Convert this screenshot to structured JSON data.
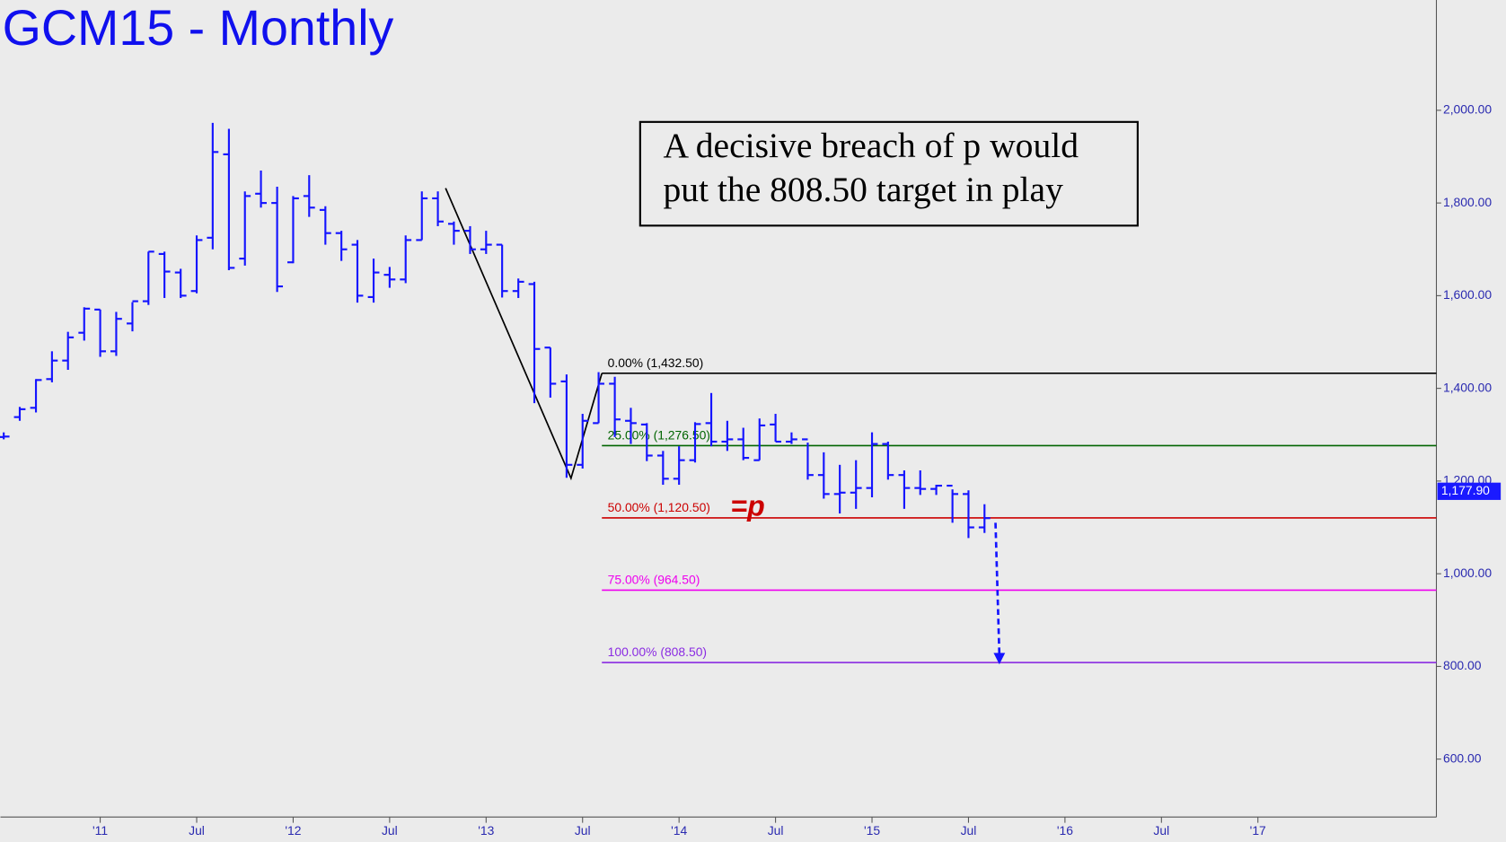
{
  "chart_data": {
    "type": "ohlc",
    "title": "GCM15 - Monthly",
    "annotation": [
      "A decisive breach of p would",
      "put the 808.50 target in play"
    ],
    "marker_text": "=p",
    "x": [
      2010.5,
      2010.583,
      2010.667,
      2010.75,
      2010.833,
      2010.917,
      2011.0,
      2011.083,
      2011.167,
      2011.25,
      2011.333,
      2011.417,
      2011.5,
      2011.583,
      2011.667,
      2011.75,
      2011.833,
      2011.917,
      2012.0,
      2012.083,
      2012.167,
      2012.25,
      2012.333,
      2012.417,
      2012.5,
      2012.583,
      2012.667,
      2012.75,
      2012.833,
      2012.917,
      2013.0,
      2013.083,
      2013.167,
      2013.25,
      2013.333,
      2013.417,
      2013.5,
      2013.583,
      2013.667,
      2013.75,
      2013.833,
      2013.917,
      2014.0,
      2014.083,
      2014.167,
      2014.25,
      2014.333,
      2014.417,
      2014.5,
      2014.583,
      2014.667,
      2014.75,
      2014.833,
      2014.917,
      2015.0,
      2015.083,
      2015.167,
      2015.25,
      2015.333,
      2015.417,
      2015.5,
      2015.583
    ],
    "series": [
      {
        "color": "#1414ff",
        "open": [
          1295,
          1338,
          1358,
          1420,
          1460,
          1520,
          1570,
          1480,
          1540,
          1588,
          1690,
          1650,
          1610,
          1725,
          1905,
          1680,
          1820,
          1800,
          1672,
          1815,
          1785,
          1735,
          1710,
          1597,
          1645,
          1635,
          1720,
          1810,
          1755,
          1740,
          1700,
          1710,
          1610,
          1625,
          1488,
          1415,
          1235,
          1325,
          1410,
          1330,
          1322,
          1255,
          1205,
          1245,
          1325,
          1285,
          1290,
          1245,
          1322,
          1285,
          1290,
          1213,
          1172,
          1175,
          1185,
          1280,
          1213,
          1185,
          1183,
          1190,
          1172,
          1100
        ],
        "high": [
          1305,
          1360,
          1420,
          1480,
          1522,
          1575,
          1570,
          1565,
          1586,
          1695,
          1695,
          1658,
          1730,
          1973,
          1960,
          1825,
          1870,
          1835,
          1815,
          1860,
          1793,
          1740,
          1720,
          1680,
          1662,
          1730,
          1825,
          1825,
          1760,
          1750,
          1740,
          1710,
          1637,
          1630,
          1488,
          1430,
          1345,
          1435,
          1425,
          1358,
          1325,
          1265,
          1275,
          1327,
          1390,
          1330,
          1315,
          1335,
          1345,
          1305,
          1283,
          1262,
          1235,
          1245,
          1305,
          1285,
          1223,
          1223,
          1192,
          1182,
          1180,
          1150
        ],
        "low": [
          1290,
          1330,
          1348,
          1413,
          1440,
          1503,
          1468,
          1470,
          1523,
          1580,
          1595,
          1595,
          1605,
          1700,
          1655,
          1665,
          1790,
          1608,
          1670,
          1770,
          1710,
          1675,
          1585,
          1585,
          1617,
          1627,
          1720,
          1750,
          1710,
          1690,
          1690,
          1596,
          1595,
          1368,
          1380,
          1207,
          1227,
          1325,
          1295,
          1280,
          1243,
          1192,
          1192,
          1240,
          1275,
          1265,
          1245,
          1245,
          1285,
          1280,
          1203,
          1162,
          1130,
          1140,
          1165,
          1203,
          1140,
          1170,
          1170,
          1110,
          1077,
          1088
        ],
        "close": [
          1296,
          1355,
          1418,
          1460,
          1510,
          1572,
          1480,
          1550,
          1588,
          1695,
          1652,
          1600,
          1720,
          1910,
          1660,
          1815,
          1800,
          1620,
          1810,
          1790,
          1735,
          1700,
          1600,
          1650,
          1635,
          1720,
          1810,
          1760,
          1740,
          1700,
          1710,
          1610,
          1630,
          1485,
          1410,
          1235,
          1330,
          1410,
          1333,
          1325,
          1255,
          1205,
          1245,
          1323,
          1285,
          1290,
          1250,
          1320,
          1285,
          1290,
          1213,
          1172,
          1175,
          1185,
          1280,
          1213,
          1185,
          1183,
          1190,
          1172,
          1100,
          1120
        ]
      }
    ],
    "fib_x_start": 2013.6,
    "fib_levels": [
      {
        "value": 1432.5,
        "label": "0.00% (1,432.50)",
        "color": "#000000"
      },
      {
        "value": 1276.5,
        "label": "25.00% (1,276.50)",
        "color": "#006400"
      },
      {
        "value": 1120.5,
        "label": "50.00% (1,120.50)",
        "color": "#cc0000"
      },
      {
        "value": 964.5,
        "label": "75.00% (964.50)",
        "color": "#ee00ee"
      },
      {
        "value": 808.5,
        "label": "100.00% (808.50)",
        "color": "#8a2be2"
      }
    ],
    "swing_line": {
      "x": [
        2012.79,
        2013.44,
        2013.6
      ],
      "y": [
        1832,
        1206,
        1432.5
      ]
    },
    "projection": {
      "x": [
        2015.64,
        2015.66
      ],
      "y": [
        1110,
        808.5
      ]
    },
    "last_price": {
      "value": 1177.9,
      "label": "1,177.90"
    },
    "xlim": [
      2010.483,
      2017.925
    ],
    "ylim": [
      475,
      2238
    ],
    "xticks": [
      {
        "value": 2011,
        "label": "'11"
      },
      {
        "value": 2011.5,
        "label": "Jul"
      },
      {
        "value": 2012,
        "label": "'12"
      },
      {
        "value": 2012.5,
        "label": "Jul"
      },
      {
        "value": 2013,
        "label": "'13"
      },
      {
        "value": 2013.5,
        "label": "Jul"
      },
      {
        "value": 2014,
        "label": "'14"
      },
      {
        "value": 2014.5,
        "label": "Jul"
      },
      {
        "value": 2015,
        "label": "'15"
      },
      {
        "value": 2015.5,
        "label": "Jul"
      },
      {
        "value": 2016,
        "label": "'16"
      },
      {
        "value": 2016.5,
        "label": "Jul"
      },
      {
        "value": 2017,
        "label": "'17"
      }
    ],
    "yticks": [
      {
        "value": 600,
        "label": "600.00"
      },
      {
        "value": 800,
        "label": "800.00"
      },
      {
        "value": 1000,
        "label": "1,000.00"
      },
      {
        "value": 1200,
        "label": "1,200.00"
      },
      {
        "value": 1400,
        "label": "1,400.00"
      },
      {
        "value": 1600,
        "label": "1,600.00"
      },
      {
        "value": 1800,
        "label": "1,800.00"
      },
      {
        "value": 2000,
        "label": "2,000.00"
      }
    ]
  }
}
